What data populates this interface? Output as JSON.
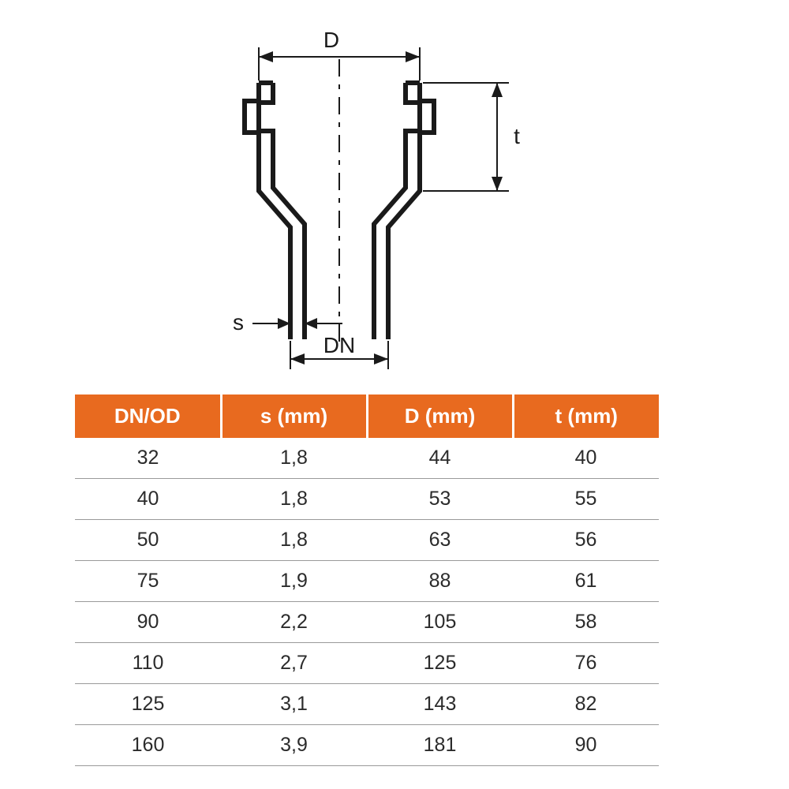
{
  "diagram": {
    "labels": {
      "D": "D",
      "t": "t",
      "s": "s",
      "DN": "DN"
    },
    "stroke": "#1a1a1a",
    "stroke_thick": 6,
    "stroke_thin": 2,
    "dash": "10 8",
    "fontsize": 28
  },
  "table": {
    "header_bg": "#e86a1f",
    "header_fg": "#ffffff",
    "row_border": "#9a9a9a",
    "text_color": "#2b2b2b",
    "header_fontsize": 26,
    "cell_fontsize": 25,
    "columns": [
      "DN/OD",
      "s (mm)",
      "D (mm)",
      "t (mm)"
    ],
    "rows": [
      [
        "32",
        "1,8",
        "44",
        "40"
      ],
      [
        "40",
        "1,8",
        "53",
        "55"
      ],
      [
        "50",
        "1,8",
        "63",
        "56"
      ],
      [
        "75",
        "1,9",
        "88",
        "61"
      ],
      [
        "90",
        "2,2",
        "105",
        "58"
      ],
      [
        "110",
        "2,7",
        "125",
        "76"
      ],
      [
        "125",
        "3,1",
        "143",
        "82"
      ],
      [
        "160",
        "3,9",
        "181",
        "90"
      ]
    ]
  }
}
